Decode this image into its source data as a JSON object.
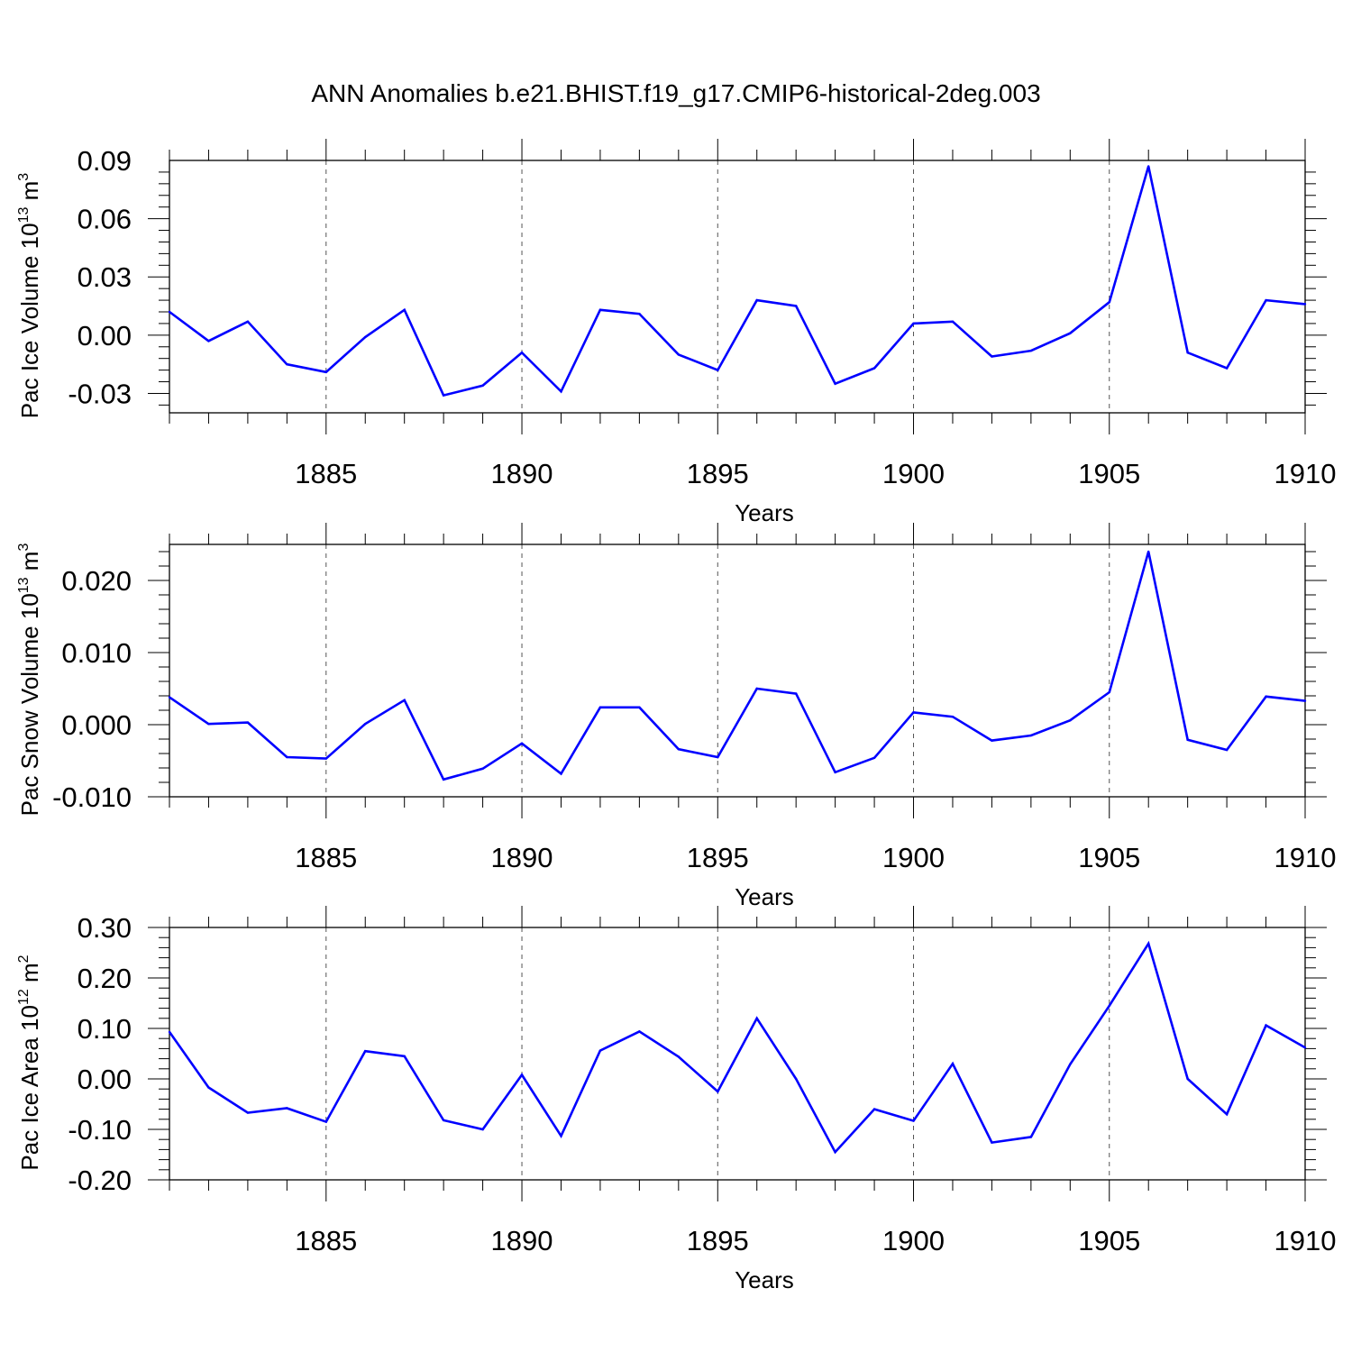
{
  "title": "ANN Anomalies b.e21.BHIST.f19_g17.CMIP6-historical-2deg.003",
  "chart_data": [
    {
      "type": "line",
      "xlabel": "Years",
      "ylabel": "Pac Ice Volume 10",
      "ylabel_exp": "13",
      "ylabel_unit": " m",
      "ylabel_unit_exp": "3",
      "xlim": [
        1881,
        1910
      ],
      "ylim": [
        -0.04,
        0.09
      ],
      "xticks": [
        1885,
        1890,
        1895,
        1900,
        1905,
        1910
      ],
      "xtick_labels": [
        "1885",
        "1890",
        "1895",
        "1900",
        "1905",
        "1910"
      ],
      "yticks": [
        -0.03,
        0.0,
        0.03,
        0.06,
        0.09
      ],
      "ytick_labels": [
        "-0.03",
        "0.00",
        "0.03",
        "0.06",
        "0.09"
      ],
      "vertical_dashed_grid": [
        1885,
        1890,
        1895,
        1900,
        1905
      ],
      "line_color": "#0000ff",
      "x": [
        1881,
        1882,
        1883,
        1884,
        1885,
        1886,
        1887,
        1888,
        1889,
        1890,
        1891,
        1892,
        1893,
        1894,
        1895,
        1896,
        1897,
        1898,
        1899,
        1900,
        1901,
        1902,
        1903,
        1904,
        1905,
        1906,
        1907,
        1908,
        1909,
        1910
      ],
      "y": [
        0.012,
        -0.003,
        0.007,
        -0.015,
        -0.019,
        -0.001,
        0.013,
        -0.031,
        -0.026,
        -0.009,
        -0.029,
        0.013,
        0.011,
        -0.01,
        -0.018,
        0.018,
        0.015,
        -0.025,
        -0.017,
        0.006,
        0.007,
        -0.011,
        -0.008,
        0.001,
        0.017,
        0.087,
        -0.009,
        -0.017,
        0.018,
        0.016
      ]
    },
    {
      "type": "line",
      "xlabel": "Years",
      "ylabel": "Pac Snow Volume 10",
      "ylabel_exp": "13",
      "ylabel_unit": " m",
      "ylabel_unit_exp": "3",
      "xlim": [
        1881,
        1910
      ],
      "ylim": [
        -0.01,
        0.025
      ],
      "xticks": [
        1885,
        1890,
        1895,
        1900,
        1905,
        1910
      ],
      "xtick_labels": [
        "1885",
        "1890",
        "1895",
        "1900",
        "1905",
        "1910"
      ],
      "yticks": [
        -0.01,
        0.0,
        0.01,
        0.02
      ],
      "ytick_labels": [
        "-0.010",
        "0.000",
        "0.010",
        "0.020"
      ],
      "vertical_dashed_grid": [
        1885,
        1890,
        1895,
        1900,
        1905
      ],
      "line_color": "#0000ff",
      "x": [
        1881,
        1882,
        1883,
        1884,
        1885,
        1886,
        1887,
        1888,
        1889,
        1890,
        1891,
        1892,
        1893,
        1894,
        1895,
        1896,
        1897,
        1898,
        1899,
        1900,
        1901,
        1902,
        1903,
        1904,
        1905,
        1906,
        1907,
        1908,
        1909,
        1910
      ],
      "y": [
        0.0038,
        0.0001,
        0.0003,
        -0.0045,
        -0.0047,
        0.0001,
        0.0034,
        -0.0076,
        -0.0061,
        -0.0026,
        -0.0068,
        0.0024,
        0.0024,
        -0.0034,
        -0.0045,
        0.005,
        0.0043,
        -0.0066,
        -0.0046,
        0.0017,
        0.0011,
        -0.0022,
        -0.0015,
        0.0006,
        0.0045,
        0.024,
        -0.0021,
        -0.0035,
        0.0039,
        0.0033
      ]
    },
    {
      "type": "line",
      "xlabel": "Years",
      "ylabel": "Pac Ice Area 10",
      "ylabel_exp": "12",
      "ylabel_unit": " m",
      "ylabel_unit_exp": "2",
      "xlim": [
        1881,
        1910
      ],
      "ylim": [
        -0.2,
        0.3
      ],
      "xticks": [
        1885,
        1890,
        1895,
        1900,
        1905,
        1910
      ],
      "xtick_labels": [
        "1885",
        "1890",
        "1895",
        "1900",
        "1905",
        "1910"
      ],
      "yticks": [
        -0.2,
        -0.1,
        0.0,
        0.1,
        0.2,
        0.3
      ],
      "ytick_labels": [
        "-0.20",
        "-0.10",
        "0.00",
        "0.10",
        "0.20",
        "0.30"
      ],
      "vertical_dashed_grid": [
        1885,
        1890,
        1895,
        1900,
        1905
      ],
      "line_color": "#0000ff",
      "x": [
        1881,
        1882,
        1883,
        1884,
        1885,
        1886,
        1887,
        1888,
        1889,
        1890,
        1891,
        1892,
        1893,
        1894,
        1895,
        1896,
        1897,
        1898,
        1899,
        1900,
        1901,
        1902,
        1903,
        1904,
        1905,
        1906,
        1907,
        1908,
        1909,
        1910
      ],
      "y": [
        0.093,
        -0.017,
        -0.067,
        -0.058,
        -0.085,
        0.055,
        0.045,
        -0.082,
        -0.1,
        0.008,
        -0.113,
        0.056,
        0.094,
        0.044,
        -0.025,
        0.12,
        0.0,
        -0.145,
        -0.06,
        -0.083,
        0.03,
        -0.126,
        -0.115,
        0.029,
        0.145,
        0.268,
        0.0,
        -0.07,
        0.106,
        0.062
      ]
    }
  ]
}
